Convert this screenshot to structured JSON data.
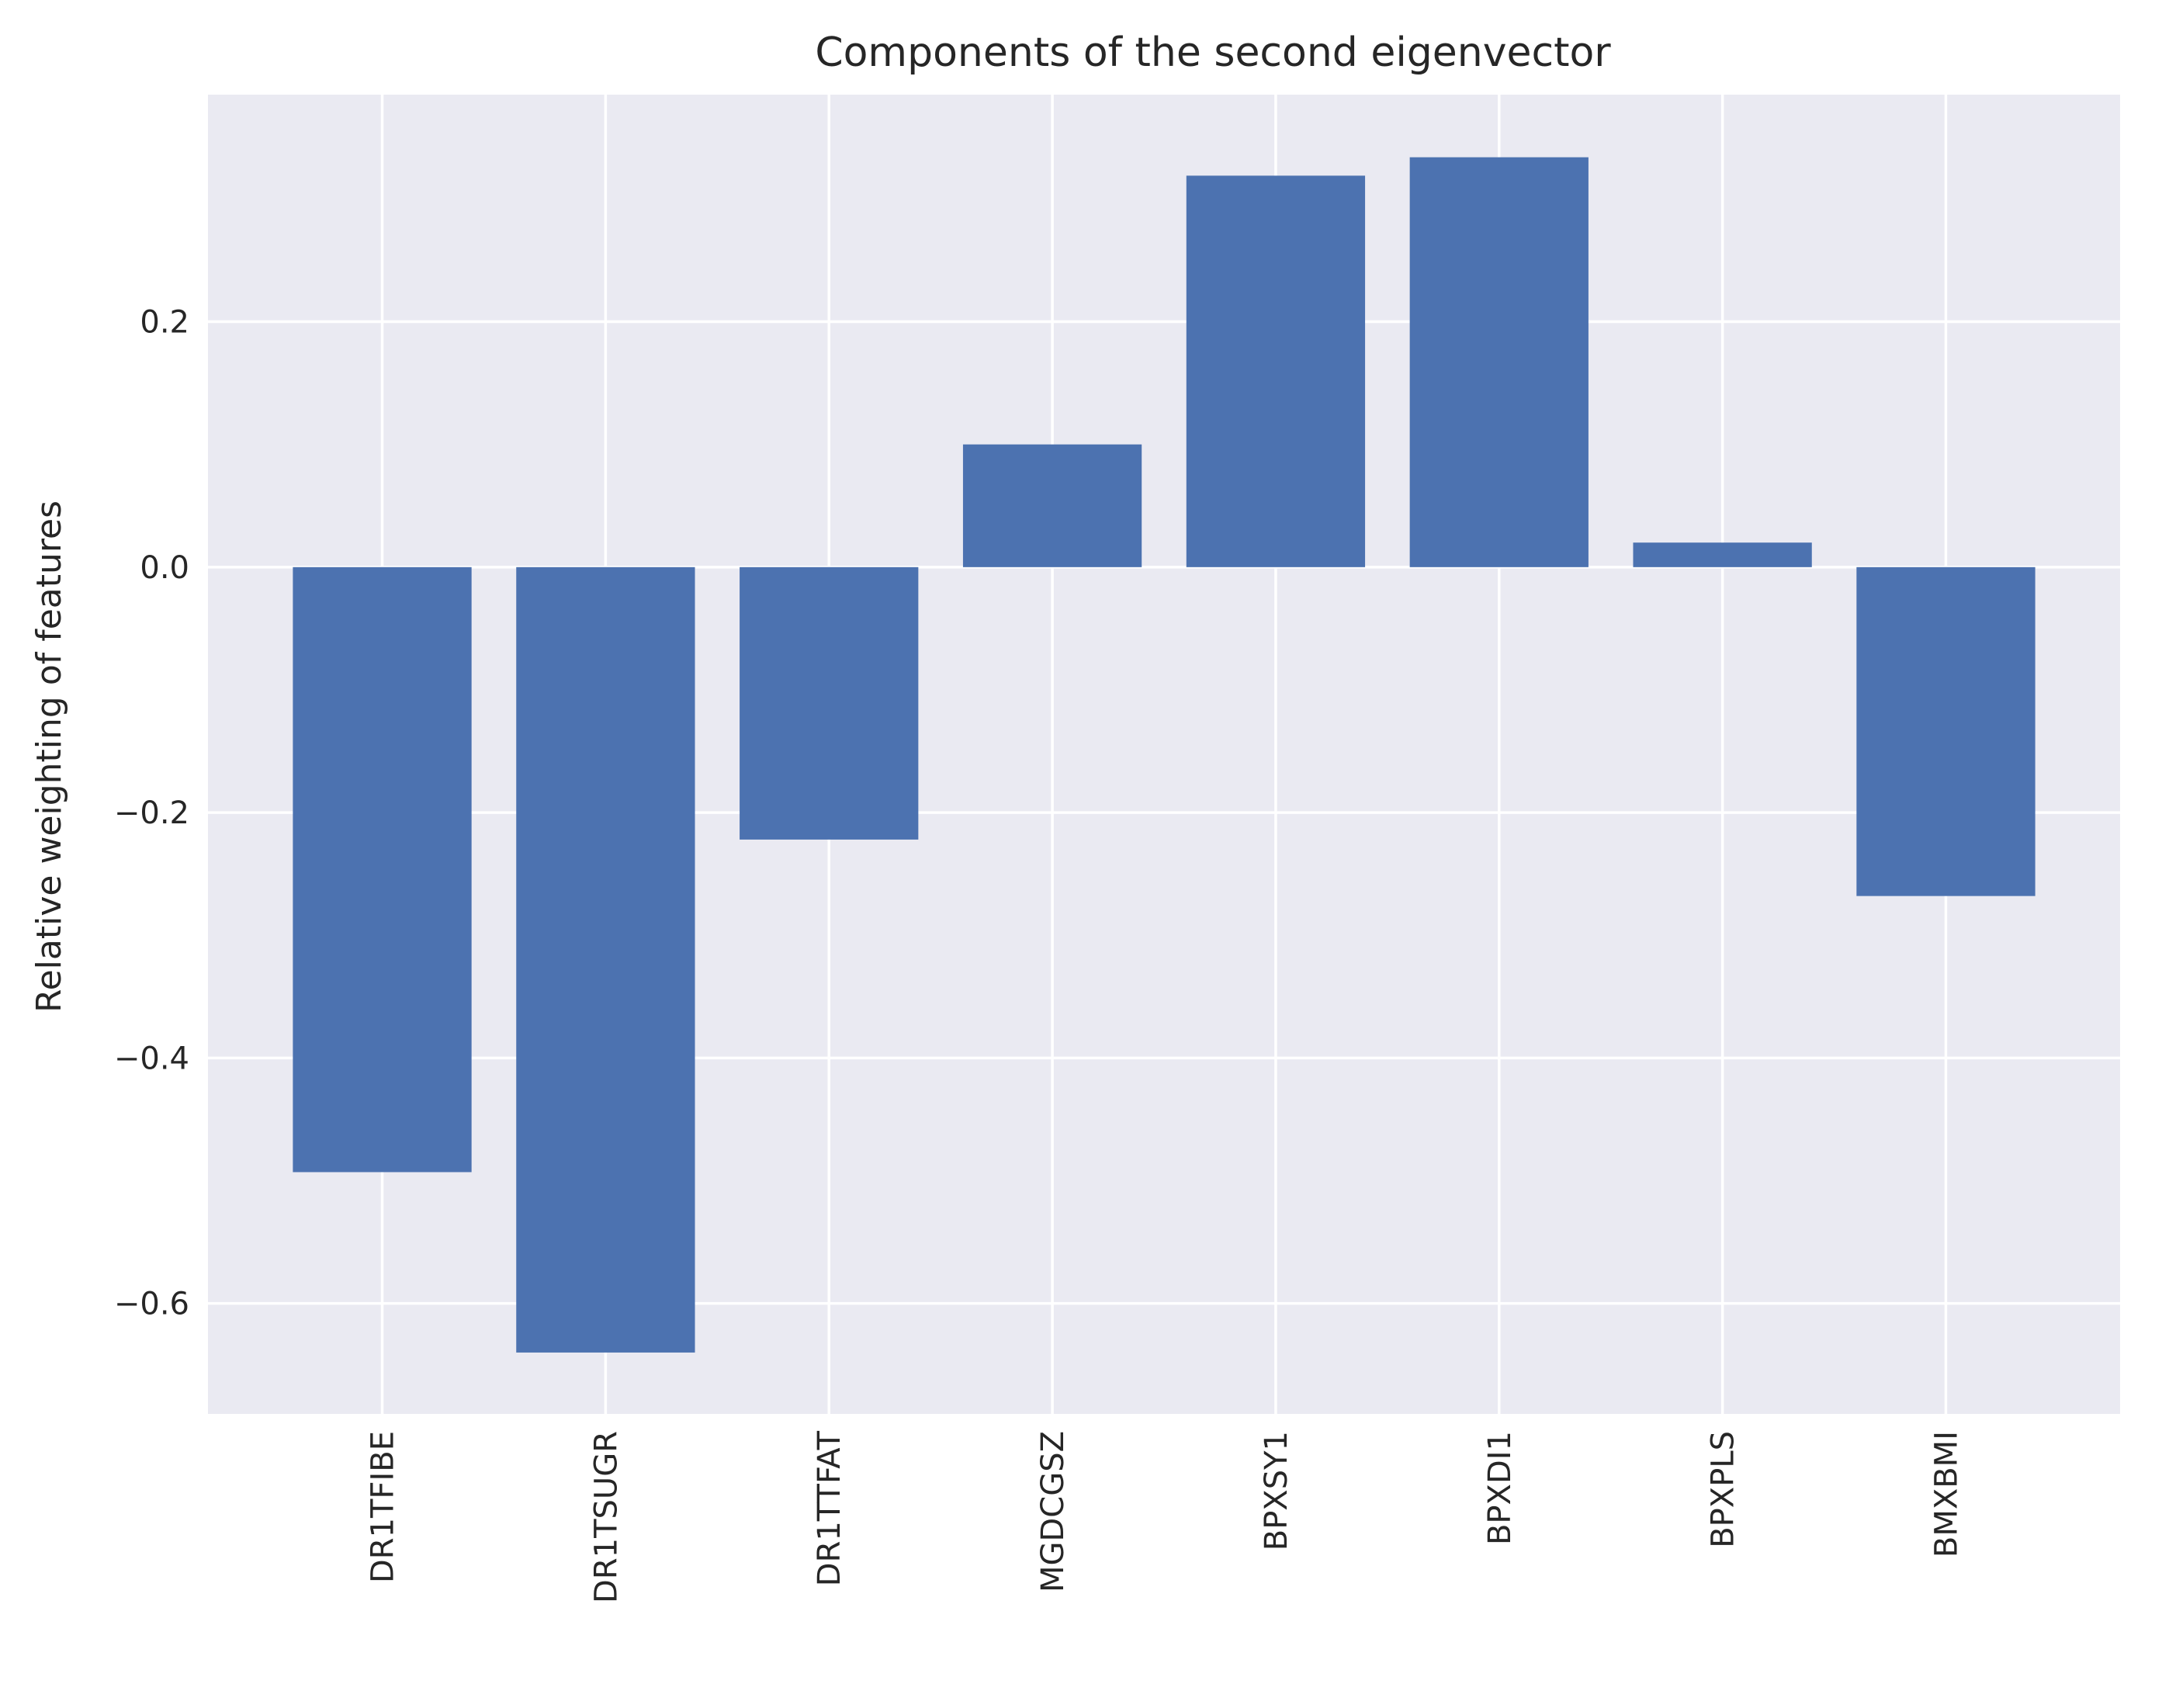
{
  "chart_data": {
    "type": "bar",
    "title": "Components of the second eigenvector",
    "xlabel": "",
    "ylabel": "Relative weighting of features",
    "categories": [
      "DR1TFIBE",
      "DR1TSUGR",
      "DR1TTFAT",
      "MGDCGSZ",
      "BPXSY1",
      "BPXDI1",
      "BPXPLS",
      "BMXBMI"
    ],
    "values": [
      -0.493,
      -0.64,
      -0.222,
      0.1,
      0.319,
      0.334,
      0.02,
      -0.268
    ],
    "ylim": [
      -0.69,
      0.385
    ],
    "yticks": [
      -0.6,
      -0.4,
      -0.2,
      0.0,
      0.2
    ],
    "ytick_labels": [
      "−0.6",
      "−0.4",
      "−0.2",
      "0.0",
      "0.2"
    ],
    "grid": true,
    "legend": "none",
    "bar_color": "#4c72b0",
    "background_color": "#eaeaf2",
    "grid_color": "#ffffff"
  }
}
